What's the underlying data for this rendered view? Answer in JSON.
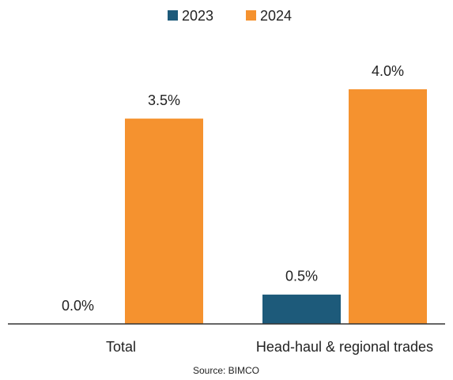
{
  "chart_data": {
    "type": "bar",
    "categories": [
      "Total",
      "Head-haul & regional trades"
    ],
    "series": [
      {
        "name": "2023",
        "color": "#1d5a7a",
        "values": [
          0.0,
          0.5
        ],
        "value_labels": [
          "0.0%",
          "0.5%"
        ]
      },
      {
        "name": "2024",
        "color": "#f5922f",
        "values": [
          3.5,
          4.0
        ],
        "value_labels": [
          "3.5%",
          "4.0%"
        ]
      }
    ],
    "legend": "top",
    "source": "Source: BIMCO"
  }
}
